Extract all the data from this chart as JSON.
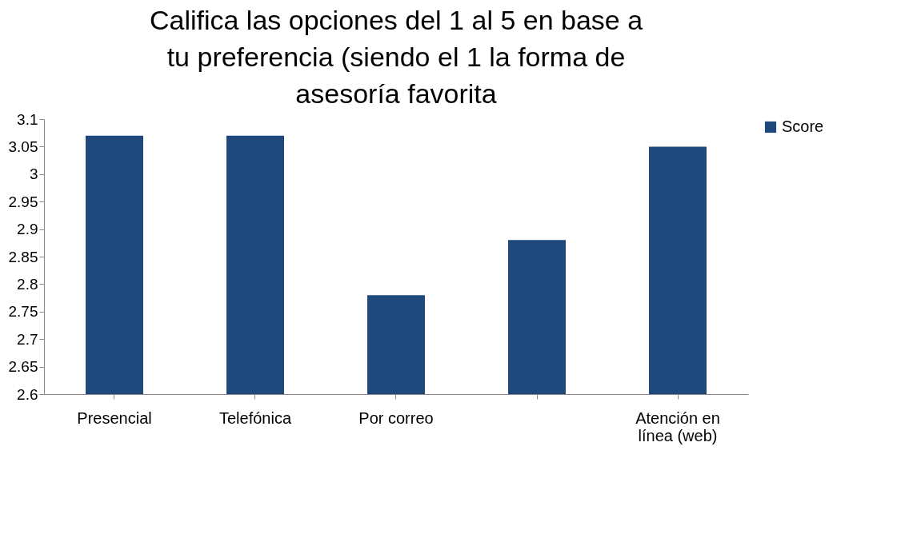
{
  "chart_data": {
    "type": "bar",
    "title": "Califica las opciones del 1 al 5 en base a tu preferencia (siendo el 1 la forma de asesoría favorita",
    "categories": [
      "Presencial",
      "Telefónica",
      "Por correo",
      null,
      "Atención en línea (web)"
    ],
    "series": [
      {
        "name": "Score",
        "color": "#1f497d",
        "values": [
          3.07,
          3.07,
          2.78,
          2.88,
          3.05
        ]
      }
    ],
    "ylim": [
      2.6,
      3.1
    ],
    "yticks": [
      2.6,
      2.65,
      2.7,
      2.75,
      2.8,
      2.85,
      2.9,
      2.95,
      3,
      3.05,
      3.1
    ],
    "grid": false,
    "legend": "right"
  }
}
